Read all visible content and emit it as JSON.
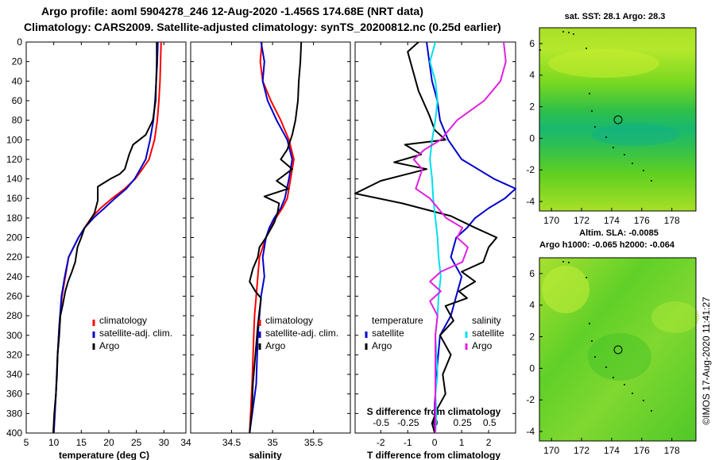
{
  "header": {
    "title_line1": "Argo profile: aoml 5904278_246 12-Aug-2020 -1.456S 174.68E (NRT data)",
    "title_line2": "Climatology: CARS2009. Satellite-adjusted climatology: synTS_20200812.nc (0.25d earlier)"
  },
  "colors": {
    "climatology": "#ff0000",
    "satellite": "#0000cc",
    "argo": "#000000",
    "salinity_satellite": "#00e0f0",
    "salinity_argo": "#e020e0"
  },
  "shared_depth_axis": {
    "reversed": true,
    "range": [
      0,
      400
    ],
    "ticks": [
      "0",
      "20",
      "40",
      "60",
      "80",
      "100",
      "120",
      "140",
      "160",
      "180",
      "200",
      "220",
      "240",
      "260",
      "280",
      "300",
      "320",
      "340",
      "360",
      "380",
      "400"
    ]
  },
  "chart_data": [
    {
      "type": "line",
      "name": "temperature",
      "xlabel": "temperature (deg C)",
      "xlim": [
        5,
        34
      ],
      "x_ticks": [
        "5",
        "10",
        "15",
        "20",
        "25",
        "30",
        "34"
      ],
      "ylim": [
        400,
        0
      ],
      "legend": [
        "climatology",
        "satellite-adj. clim.",
        "Argo"
      ],
      "series": [
        {
          "name": "climatology",
          "color_key": "climatology",
          "x": [
            29.5,
            29.4,
            29.3,
            29.1,
            28.8,
            28.3,
            27.3,
            26.1,
            24.8,
            22.9,
            20.6,
            18.5,
            16.8,
            15.6,
            14.5,
            13.6,
            12.7,
            12.1,
            11.5,
            11.0,
            10.7,
            10.4,
            10.0
          ],
          "y": [
            0,
            20,
            40,
            60,
            80,
            100,
            120,
            130,
            140,
            150,
            160,
            170,
            180,
            190,
            200,
            210,
            220,
            240,
            260,
            290,
            320,
            360,
            400
          ]
        },
        {
          "name": "satellite-adj. clim.",
          "color_key": "satellite",
          "x": [
            28.9,
            28.8,
            28.6,
            28.4,
            28.1,
            27.5,
            26.7,
            25.7,
            24.7,
            23.2,
            21.1,
            19.2,
            17.2,
            15.6,
            14.5,
            13.6,
            12.7,
            12.0,
            11.4,
            11.0,
            10.7,
            10.4,
            10.0
          ],
          "y": [
            0,
            20,
            40,
            60,
            80,
            100,
            120,
            130,
            140,
            150,
            160,
            170,
            180,
            190,
            200,
            210,
            220,
            240,
            260,
            290,
            320,
            360,
            400
          ]
        },
        {
          "name": "Argo",
          "color_key": "argo",
          "x": [
            28.7,
            28.7,
            28.6,
            28.5,
            28.0,
            26.7,
            24.4,
            23.7,
            22.9,
            22.0,
            20.3,
            18.0,
            18.0,
            17.4,
            16.3,
            15.6,
            15.0,
            14.3,
            13.9,
            13.3,
            12.6,
            12.1,
            11.6,
            11.2,
            11.0,
            10.7,
            10.6,
            10.4,
            10.1,
            9.9
          ],
          "y": [
            0,
            20,
            40,
            60,
            80,
            95,
            105,
            115,
            130,
            135,
            140,
            148,
            162,
            175,
            185,
            190,
            200,
            210,
            225,
            235,
            245,
            255,
            270,
            280,
            300,
            320,
            340,
            360,
            380,
            400
          ]
        }
      ]
    },
    {
      "type": "line",
      "name": "salinity",
      "xlabel": "salinity",
      "xlim": [
        34.0,
        35.95
      ],
      "x_ticks": [
        "34.5",
        "35",
        "35.5"
      ],
      "ylim": [
        400,
        0
      ],
      "legend": [
        "climatology",
        "satellite-adj. clim.",
        "Argo"
      ],
      "series": [
        {
          "name": "climatology",
          "color_key": "climatology",
          "x": [
            34.87,
            34.85,
            34.88,
            34.98,
            35.1,
            35.2,
            35.26,
            35.22,
            35.18,
            35.12,
            35.04,
            34.98,
            34.92,
            34.88,
            34.84,
            34.82,
            34.8,
            34.78,
            34.77,
            34.75,
            34.72
          ],
          "y": [
            0,
            20,
            40,
            60,
            80,
            100,
            120,
            140,
            160,
            170,
            180,
            190,
            200,
            210,
            220,
            240,
            260,
            280,
            300,
            350,
            400
          ]
        },
        {
          "name": "satellite-adj. clim.",
          "color_key": "satellite",
          "x": [
            34.86,
            34.9,
            34.88,
            34.94,
            35.05,
            35.18,
            35.24,
            35.2,
            35.15,
            35.1,
            35.02,
            34.96,
            34.92,
            34.9,
            34.88,
            34.9,
            34.86,
            34.84,
            34.82,
            34.8,
            34.72
          ],
          "y": [
            0,
            20,
            40,
            60,
            80,
            100,
            120,
            140,
            160,
            170,
            180,
            190,
            200,
            210,
            220,
            240,
            260,
            280,
            300,
            350,
            400
          ]
        },
        {
          "name": "Argo",
          "color_key": "argo",
          "x": [
            35.35,
            35.34,
            35.32,
            35.31,
            35.28,
            35.24,
            35.18,
            35.1,
            35.24,
            35.05,
            35.19,
            34.9,
            35.08,
            35.06,
            35.02,
            34.92,
            34.84,
            34.82,
            34.76,
            34.72,
            34.79,
            34.86,
            34.84,
            34.82,
            34.8,
            34.78,
            34.76,
            34.75,
            34.72
          ],
          "y": [
            0,
            20,
            40,
            60,
            80,
            95,
            110,
            120,
            130,
            142,
            150,
            158,
            165,
            175,
            185,
            200,
            210,
            220,
            232,
            245,
            255,
            262,
            275,
            290,
            310,
            330,
            350,
            375,
            400
          ]
        }
      ]
    },
    {
      "type": "line",
      "name": "differences",
      "xlabel": "T difference from climatology",
      "xlim": [
        -2.95,
        3.0
      ],
      "x_ticks": [
        "-2",
        "-1",
        "0",
        "1",
        "2"
      ],
      "top_xlabel": "S difference from climatology",
      "top_xlim": [
        -0.74,
        0.74
      ],
      "top_x_ticks": [
        "-0.5",
        "-0.25",
        "0",
        "0.25",
        "0.5"
      ],
      "ylim": [
        400,
        0
      ],
      "legend_temperature_title": "temperature",
      "legend_temperature": [
        "satellite",
        "Argo"
      ],
      "legend_salinity_title": "salinity",
      "legend_salinity": [
        "satellite",
        "Argo"
      ],
      "series": [
        {
          "name": "T satellite",
          "axis": "T",
          "color_key": "satellite",
          "x": [
            -0.3,
            -0.2,
            -0.1,
            0.1,
            0.2,
            0.5,
            1.0,
            1.6,
            2.2,
            3.0,
            2.6,
            2.0,
            1.5,
            1.2,
            0.8,
            0.6,
            1.0,
            0.8,
            0.6,
            0.2,
            0.1,
            0.0,
            0.0
          ],
          "y": [
            0,
            20,
            40,
            60,
            80,
            100,
            120,
            130,
            140,
            150,
            160,
            170,
            180,
            190,
            200,
            220,
            240,
            260,
            280,
            300,
            330,
            370,
            400
          ]
        },
        {
          "name": "T Argo",
          "axis": "T",
          "color_key": "argo",
          "x": [
            -0.6,
            -1.0,
            -0.8,
            -0.6,
            -0.2,
            0.0,
            0.4,
            -1.1,
            -0.5,
            -1.5,
            -0.3,
            -2.0,
            -3.0,
            -1.2,
            0.6,
            1.5,
            2.3,
            2.0,
            1.8,
            1.0,
            1.5,
            0.9,
            1.2,
            0.4,
            0.7,
            0.2,
            0.6,
            0.3,
            0.4,
            0.1,
            -0.1,
            0.0
          ],
          "y": [
            0,
            10,
            30,
            50,
            75,
            90,
            100,
            105,
            115,
            123,
            130,
            142,
            155,
            165,
            178,
            190,
            200,
            210,
            225,
            235,
            245,
            255,
            262,
            270,
            285,
            300,
            320,
            340,
            360,
            375,
            390,
            400
          ]
        },
        {
          "name": "S satellite",
          "axis": "S",
          "color_key": "salinity_satellite",
          "x": [
            0.0,
            -0.05,
            0.0,
            0.02,
            0.0,
            -0.03,
            -0.05,
            -0.03,
            -0.02,
            0.0,
            0.02,
            0.03,
            0.05,
            0.03,
            0.02,
            0.0,
            0.01,
            0.02,
            0.0,
            0.01,
            0.0
          ],
          "y": [
            0,
            20,
            40,
            60,
            80,
            100,
            120,
            140,
            160,
            180,
            200,
            220,
            240,
            260,
            280,
            300,
            320,
            340,
            360,
            380,
            400
          ]
        },
        {
          "name": "S Argo",
          "axis": "S",
          "color_key": "salinity_argo",
          "x": [
            0.63,
            0.65,
            0.6,
            0.45,
            0.2,
            0.05,
            -0.1,
            -0.2,
            -0.12,
            -0.15,
            -0.18,
            -0.05,
            0.1,
            0.25,
            0.2,
            0.3,
            0.25,
            0.05,
            -0.05,
            0.05,
            -0.05,
            0.02,
            0.0,
            0.0,
            0.0
          ],
          "y": [
            0,
            20,
            40,
            60,
            80,
            100,
            110,
            120,
            130,
            140,
            150,
            160,
            180,
            190,
            200,
            210,
            225,
            235,
            245,
            255,
            265,
            280,
            300,
            350,
            400
          ]
        }
      ]
    }
  ],
  "maps": {
    "sst": {
      "title": "sat. SST: 28.1  Argo: 28.3",
      "x_ticks": [
        "170",
        "172",
        "174",
        "176",
        "178"
      ],
      "y_ticks": [
        "6",
        "4",
        "2",
        "0",
        "-2",
        "-4"
      ]
    },
    "sla": {
      "title_line1": "Altim. SLA: -0.0085",
      "title_line2": "Argo h1000: -0.065 h2000: -0.064",
      "x_ticks": [
        "170",
        "172",
        "174",
        "176",
        "178"
      ],
      "y_ticks": [
        "6",
        "4",
        "2",
        "0",
        "-2",
        "-4"
      ]
    }
  },
  "credit": "©IMOS 17-Aug-2020 11:41:27"
}
